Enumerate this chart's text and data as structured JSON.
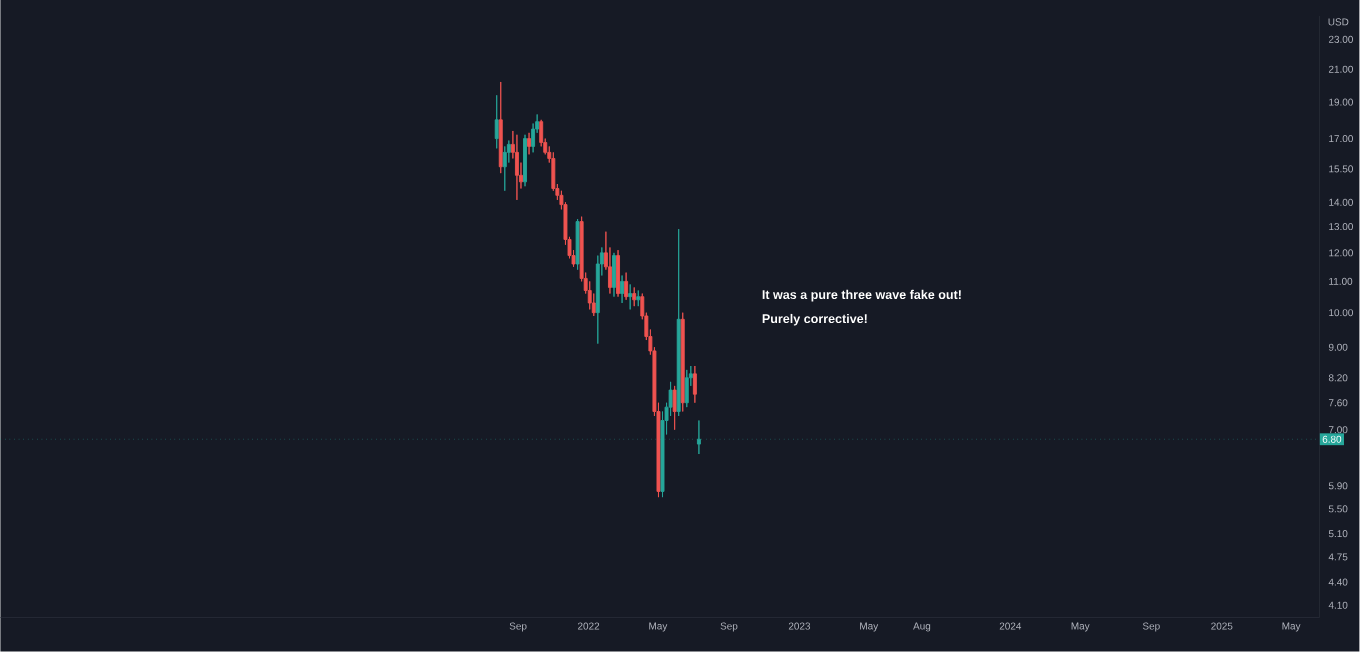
{
  "chart_data": {
    "type": "candlestick",
    "ylabel": "USD",
    "annotations": [
      "It was a pure three wave fake out!",
      "Purely corrective!"
    ],
    "x": [
      "2021-07-26",
      "2021-08-02",
      "2021-08-09",
      "2021-08-16",
      "2021-08-23",
      "2021-08-30",
      "2021-09-06",
      "2021-09-13",
      "2021-09-20",
      "2021-09-27",
      "2021-10-04",
      "2021-10-11",
      "2021-10-18",
      "2021-10-25",
      "2021-11-01",
      "2021-11-08",
      "2021-11-15",
      "2021-11-22",
      "2021-11-29",
      "2021-12-06",
      "2021-12-13",
      "2021-12-20",
      "2021-12-27",
      "2022-01-03",
      "2022-01-10",
      "2022-01-17",
      "2022-01-24",
      "2022-01-31",
      "2022-02-07",
      "2022-02-14",
      "2022-02-21",
      "2022-02-28",
      "2022-03-07",
      "2022-03-14",
      "2022-03-21",
      "2022-03-28",
      "2022-04-04",
      "2022-04-11",
      "2022-04-18",
      "2022-04-25",
      "2022-05-02",
      "2022-05-09",
      "2022-05-16",
      "2022-05-23",
      "2022-05-30",
      "2022-06-06",
      "2022-06-13",
      "2022-06-20",
      "2022-06-27",
      "2022-07-04",
      "2022-07-11"
    ],
    "ohlc": [
      [
        17.0,
        19.4,
        16.5,
        18.0
      ],
      [
        18.0,
        20.2,
        15.3,
        15.6
      ],
      [
        15.6,
        16.6,
        14.5,
        16.3
      ],
      [
        16.3,
        16.9,
        15.8,
        16.7
      ],
      [
        16.7,
        17.4,
        16.0,
        16.3
      ],
      [
        16.3,
        17.2,
        14.1,
        15.2
      ],
      [
        15.2,
        15.8,
        14.6,
        14.9
      ],
      [
        14.9,
        17.2,
        14.7,
        17.0
      ],
      [
        17.0,
        17.3,
        16.2,
        16.6
      ],
      [
        16.6,
        17.8,
        16.3,
        17.5
      ],
      [
        17.5,
        18.3,
        17.3,
        17.9
      ],
      [
        17.9,
        18.0,
        16.6,
        16.8
      ],
      [
        16.8,
        17.0,
        16.2,
        16.3
      ],
      [
        16.3,
        16.6,
        15.8,
        16.0
      ],
      [
        16.0,
        16.3,
        14.5,
        14.6
      ],
      [
        14.6,
        14.8,
        14.1,
        14.3
      ],
      [
        14.3,
        14.5,
        13.7,
        13.9
      ],
      [
        13.9,
        14.0,
        12.3,
        12.5
      ],
      [
        12.5,
        12.6,
        11.8,
        11.9
      ],
      [
        11.9,
        12.1,
        11.5,
        11.6
      ],
      [
        11.6,
        13.3,
        11.4,
        13.2
      ],
      [
        13.2,
        13.4,
        11.0,
        11.1
      ],
      [
        11.1,
        11.3,
        10.6,
        10.7
      ],
      [
        10.7,
        11.0,
        10.1,
        10.3
      ],
      [
        10.3,
        10.6,
        9.9,
        10.0
      ],
      [
        10.0,
        11.9,
        9.1,
        11.6
      ],
      [
        11.6,
        12.2,
        11.2,
        12.0
      ],
      [
        12.0,
        12.8,
        11.4,
        11.5
      ],
      [
        11.5,
        12.2,
        10.6,
        10.8
      ],
      [
        10.8,
        12.0,
        10.5,
        11.9
      ],
      [
        11.9,
        12.1,
        10.5,
        10.6
      ],
      [
        10.6,
        11.2,
        10.3,
        11.0
      ],
      [
        11.0,
        11.3,
        10.4,
        10.5
      ],
      [
        10.5,
        10.9,
        10.1,
        10.6
      ],
      [
        10.6,
        10.8,
        10.2,
        10.4
      ],
      [
        10.4,
        10.7,
        10.2,
        10.5
      ],
      [
        10.5,
        10.6,
        9.8,
        9.9
      ],
      [
        9.9,
        10.0,
        9.2,
        9.3
      ],
      [
        9.3,
        9.5,
        8.8,
        8.9
      ],
      [
        8.9,
        9.0,
        7.3,
        7.4
      ],
      [
        7.4,
        7.6,
        5.7,
        5.8
      ],
      [
        5.8,
        7.4,
        5.7,
        7.2
      ],
      [
        7.2,
        7.6,
        6.9,
        7.5
      ],
      [
        7.5,
        8.1,
        7.3,
        7.9
      ],
      [
        7.9,
        8.0,
        7.0,
        7.4
      ],
      [
        7.4,
        12.9,
        7.3,
        9.8
      ],
      [
        9.8,
        10.0,
        7.4,
        7.6
      ],
      [
        7.6,
        8.4,
        7.5,
        8.2
      ],
      [
        8.2,
        8.5,
        8.0,
        8.3
      ],
      [
        8.3,
        8.5,
        7.6,
        7.8
      ],
      [
        6.7,
        7.2,
        6.5,
        6.8
      ]
    ],
    "colors": [
      "#26a69a",
      "#ef5350",
      "#26a69a",
      "#26a69a",
      "#ef5350",
      "#ef5350",
      "#ef5350",
      "#26a69a",
      "#ef5350",
      "#26a69a",
      "#26a69a",
      "#ef5350",
      "#ef5350",
      "#ef5350",
      "#ef5350",
      "#ef5350",
      "#ef5350",
      "#ef5350",
      "#ef5350",
      "#ef5350",
      "#26a69a",
      "#ef5350",
      "#ef5350",
      "#ef5350",
      "#ef5350",
      "#26a69a",
      "#26a69a",
      "#ef5350",
      "#ef5350",
      "#26a69a",
      "#ef5350",
      "#26a69a",
      "#ef5350",
      "#26a69a",
      "#ef5350",
      "#26a69a",
      "#ef5350",
      "#ef5350",
      "#ef5350",
      "#ef5350",
      "#ef5350",
      "#26a69a",
      "#26a69a",
      "#26a69a",
      "#ef5350",
      "#26a69a",
      "#ef5350",
      "#26a69a",
      "#26a69a",
      "#ef5350",
      "#26a69a"
    ],
    "log": "y",
    "xlim": [
      "2019-03-20",
      "2025-06-19"
    ],
    "xticks": [
      {
        "value": "2021-09-01",
        "label": "Sep"
      },
      {
        "value": "2022-01-01",
        "label": "2022"
      },
      {
        "value": "2022-05-01",
        "label": "May"
      },
      {
        "value": "2022-09-01",
        "label": "Sep"
      },
      {
        "value": "2023-01-01",
        "label": "2023"
      },
      {
        "value": "2023-05-01",
        "label": "May"
      },
      {
        "value": "2023-08-01",
        "label": "Aug"
      },
      {
        "value": "2024-01-01",
        "label": "2024"
      },
      {
        "value": "2024-05-01",
        "label": "May"
      },
      {
        "value": "2024-09-01",
        "label": "Sep"
      },
      {
        "value": "2025-01-01",
        "label": "2025"
      },
      {
        "value": "2025-05-01",
        "label": "May"
      }
    ],
    "ylim": [
      3.95,
      24.7
    ],
    "yticks": [
      {
        "value": 4.1,
        "label": "4.10"
      },
      {
        "value": 4.4,
        "label": "4.40"
      },
      {
        "value": 4.75,
        "label": "4.75"
      },
      {
        "value": 5.1,
        "label": "5.10"
      },
      {
        "value": 5.5,
        "label": "5.50"
      },
      {
        "value": 5.9,
        "label": "5.90"
      },
      {
        "value": 7,
        "label": "7.00"
      },
      {
        "value": 7.6,
        "label": "7.60"
      },
      {
        "value": 8.2,
        "label": "8.20"
      },
      {
        "value": 9,
        "label": "9.00"
      },
      {
        "value": 10,
        "label": "10.00"
      },
      {
        "value": 11,
        "label": "11.00"
      },
      {
        "value": 12,
        "label": "12.00"
      },
      {
        "value": 13,
        "label": "13.00"
      },
      {
        "value": 14,
        "label": "14.00"
      },
      {
        "value": 15.5,
        "label": "15.50"
      },
      {
        "value": 17,
        "label": "17.00"
      },
      {
        "value": 19,
        "label": "19.00"
      },
      {
        "value": 21,
        "label": "21.00"
      },
      {
        "value": 23,
        "label": "23.00"
      }
    ],
    "ref_lines": [
      {
        "axis": "y",
        "value": 6.8,
        "label": "6.80",
        "color": "#26a69a"
      }
    ]
  }
}
